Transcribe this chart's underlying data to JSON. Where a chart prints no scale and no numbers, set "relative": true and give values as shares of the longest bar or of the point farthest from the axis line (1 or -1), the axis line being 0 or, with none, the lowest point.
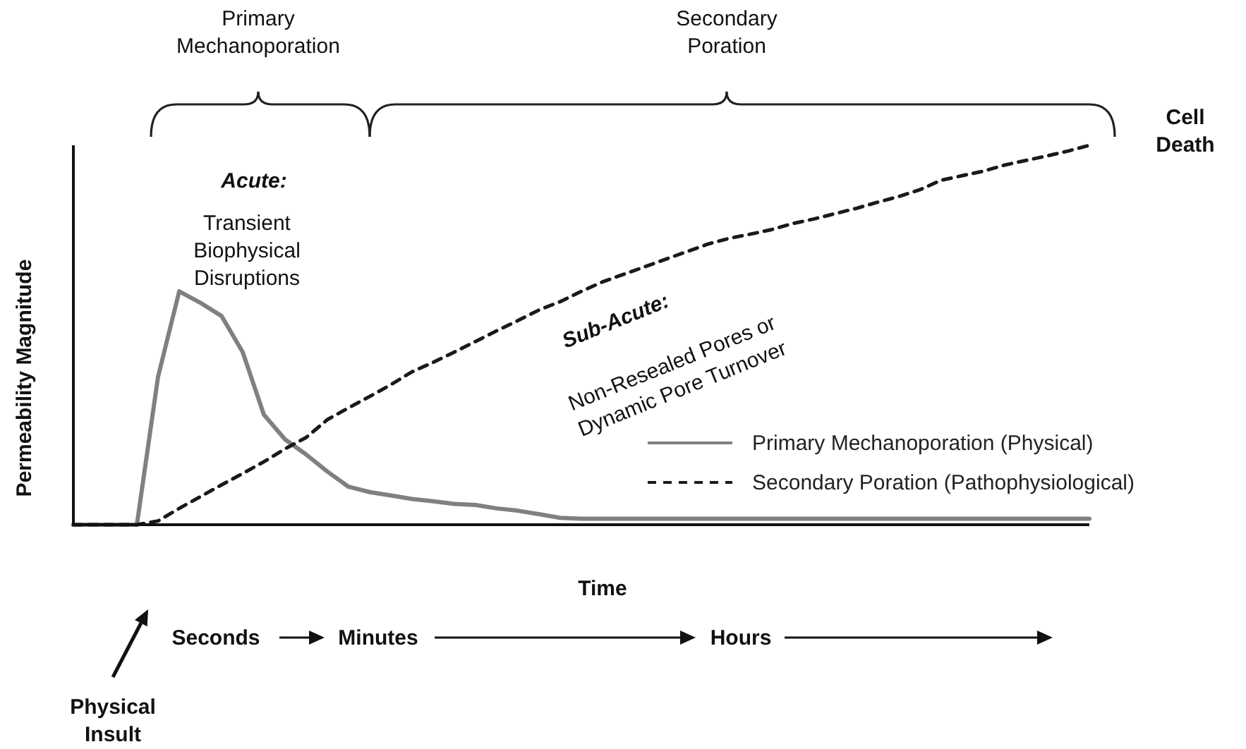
{
  "chart_data": {
    "type": "line",
    "relative": true,
    "xlabel": "Time",
    "ylabel": "Permeability Magnitude",
    "categories": [
      null,
      null,
      null,
      null,
      null,
      null,
      null,
      null,
      null,
      null,
      null,
      null,
      null,
      null,
      null,
      null,
      null,
      null,
      null,
      null,
      null,
      null,
      null,
      null,
      null,
      null,
      null,
      null,
      null,
      null,
      null,
      null,
      null,
      null,
      null,
      null,
      null,
      null,
      null,
      null,
      null,
      null,
      null,
      null,
      null,
      null,
      null,
      null,
      null
    ],
    "series": [
      {
        "name": "Primary Mechanoporation (Physical)",
        "color": "#808080",
        "line_style": "solid",
        "values": [
          0,
          0,
          0,
          0,
          0.39,
          0.615,
          0.585,
          0.55,
          0.455,
          0.29,
          0.225,
          0.185,
          0.14,
          0.1,
          0.086,
          0.077,
          0.068,
          0.062,
          0.055,
          0.052,
          0.043,
          0.037,
          0.028,
          0.018,
          0.016,
          0.016,
          0.016,
          0.016,
          0.016,
          0.016,
          0.016,
          0.016,
          0.016,
          0.016,
          0.016,
          0.016,
          0.016,
          0.016,
          0.016,
          0.016,
          0.016,
          0.016,
          0.016,
          0.016,
          0.016,
          0.016,
          0.016,
          0.016,
          0.016
        ]
      },
      {
        "name": "Secondary Poration (Pathophysiological)",
        "color": "#1a1a1a",
        "line_style": "dashed",
        "values": [
          0,
          0,
          0,
          0,
          0.01,
          0.043,
          0.074,
          0.105,
          0.135,
          0.166,
          0.2,
          0.23,
          0.277,
          0.308,
          0.338,
          0.369,
          0.403,
          0.428,
          0.455,
          0.483,
          0.511,
          0.538,
          0.566,
          0.588,
          0.615,
          0.64,
          0.66,
          0.68,
          0.7,
          0.72,
          0.74,
          0.755,
          0.766,
          0.778,
          0.794,
          0.806,
          0.82,
          0.834,
          0.85,
          0.865,
          0.883,
          0.908,
          0.92,
          0.932,
          0.948,
          0.96,
          0.972,
          0.985,
          1
        ]
      }
    ],
    "legend": "right",
    "grid": false,
    "marker": "none",
    "annotations": [
      "Primary\nMechanoporation",
      "Secondary\nPoration",
      "Cell\nDeath",
      "Acute:",
      "Transient\nBiophysical\nDisruptions",
      "Sub-Acute:",
      "Non-Resealed Pores or\nDynamic Pore Turnover",
      "Seconds",
      "Minutes",
      "Hours",
      "Physical\nInsult"
    ]
  }
}
